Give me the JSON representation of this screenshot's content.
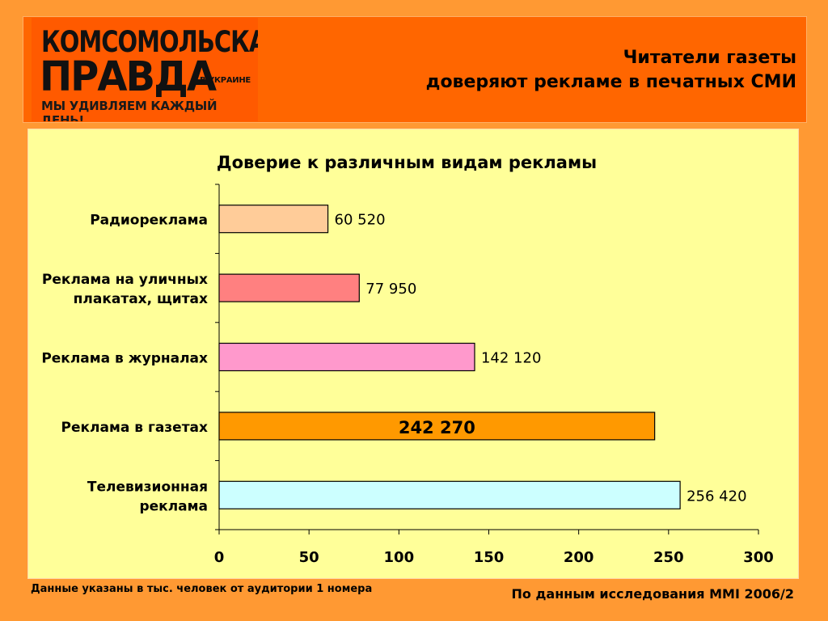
{
  "logo": {
    "line1": "КОМСОМОЛЬСКАЯ",
    "line2": "ПРАВДА",
    "suffix": "В УКРАИНЕ",
    "tagline": "МЫ УДИВЛЯЕМ КАЖДЫЙ ДЕНЬ!"
  },
  "header": {
    "title_line1": "Читатели газеты",
    "title_line2": "доверяют рекламе в печатных СМИ"
  },
  "footer": {
    "note": "Данные указаны в тыс. человек от аудитории 1 номера",
    "source": "По данным исследования MMI 2006/2"
  },
  "colors": {
    "background": "#ff9933",
    "header": "#ff6600",
    "chart_background": "#ffff99"
  },
  "chart_data": {
    "type": "bar",
    "orientation": "horizontal",
    "title": "Доверие к различным видам рекламы",
    "categories": [
      "Радиореклама",
      "Реклама на уличных плакатах, щитах",
      "Реклама в журналах",
      "Реклама в газетах",
      "Телевизионная реклама"
    ],
    "category_label_lines": [
      [
        "Радиореклама"
      ],
      [
        "Реклама на уличных",
        "плакатах, щитах"
      ],
      [
        "Реклама в журналах"
      ],
      [
        "Реклама в газетах"
      ],
      [
        "Телевизионная",
        "реклама"
      ]
    ],
    "values": [
      60.52,
      77.95,
      142.12,
      242.27,
      256.42
    ],
    "data_labels": [
      "60 520",
      "77 950",
      "142 120",
      "242 270",
      "256 420"
    ],
    "bar_colors": [
      "#ffcc99",
      "#ff8080",
      "#ff99cc",
      "#ff9900",
      "#ccffff"
    ],
    "highlighted_index": 3,
    "xlim": [
      0,
      300
    ],
    "x_ticks": [
      0,
      50,
      100,
      150,
      200,
      250,
      300
    ],
    "grid": false,
    "legend": "none"
  }
}
